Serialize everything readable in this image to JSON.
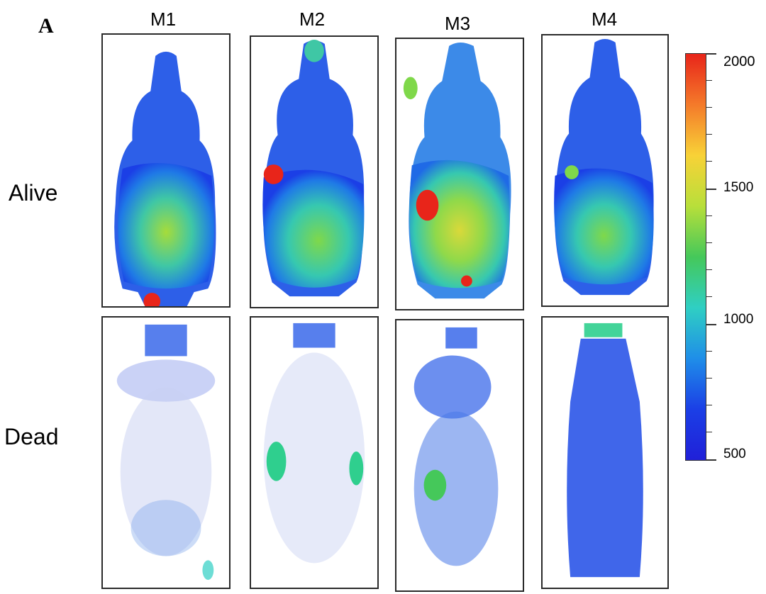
{
  "figure": {
    "panel_letter": "A",
    "columns": [
      "M1",
      "M2",
      "M3",
      "M4"
    ],
    "rows": [
      "Alive",
      "Dead"
    ]
  },
  "colorbar": {
    "labels": [
      "2000",
      "1500",
      "1000",
      "500"
    ],
    "gradient": [
      "#e8251a",
      "#f47a2a",
      "#f8d237",
      "#b8df3a",
      "#45c85a",
      "#2fcfc3",
      "#1f8ee8",
      "#1b3fe6",
      "#2020d8"
    ]
  }
}
